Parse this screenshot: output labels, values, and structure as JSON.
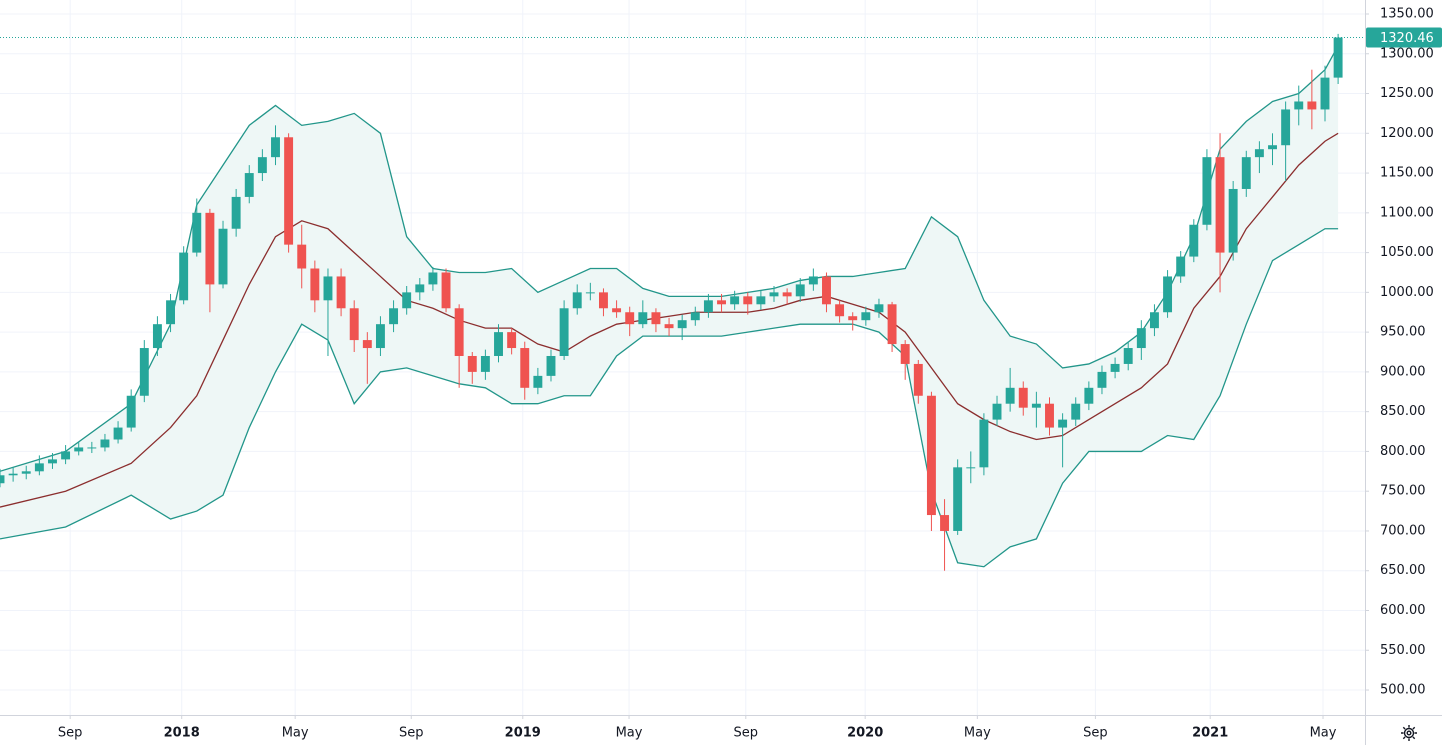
{
  "chart_data": {
    "type": "candlestick",
    "up_color": "#26a69a",
    "down_color": "#ef5350",
    "grid": true,
    "x": [
      0,
      2,
      4,
      6,
      8,
      10,
      12,
      14,
      16,
      18,
      20,
      22,
      24,
      26,
      28,
      30,
      32,
      34,
      36,
      38,
      40,
      42,
      44,
      46,
      48,
      50,
      52,
      54,
      56,
      58,
      60,
      62,
      64,
      66,
      68,
      70,
      72,
      74,
      76,
      78,
      80,
      82,
      84,
      86,
      88,
      90,
      92,
      94,
      96,
      98,
      100,
      102,
      104,
      106,
      108,
      110,
      112,
      114,
      116,
      118,
      120,
      122,
      124,
      126,
      128,
      130,
      132,
      134,
      136,
      138,
      140,
      142,
      144,
      146,
      148,
      150,
      152,
      154,
      156,
      158,
      160,
      162,
      164,
      166,
      168,
      170,
      172,
      174,
      176,
      178,
      180,
      182,
      184,
      186,
      188,
      190,
      192,
      194,
      196,
      198,
      200,
      202,
      204
    ],
    "ohlc": [
      [
        760,
        778,
        755,
        770
      ],
      [
        770,
        780,
        762,
        772
      ],
      [
        772,
        782,
        765,
        775
      ],
      [
        775,
        795,
        770,
        785
      ],
      [
        785,
        798,
        778,
        790
      ],
      [
        790,
        808,
        784,
        800
      ],
      [
        800,
        812,
        795,
        805
      ],
      [
        805,
        812,
        798,
        805
      ],
      [
        805,
        822,
        800,
        815
      ],
      [
        815,
        838,
        810,
        830
      ],
      [
        830,
        878,
        825,
        870
      ],
      [
        870,
        940,
        862,
        930
      ],
      [
        930,
        970,
        920,
        960
      ],
      [
        960,
        998,
        950,
        990
      ],
      [
        990,
        1058,
        985,
        1050
      ],
      [
        1050,
        1118,
        1045,
        1100
      ],
      [
        1100,
        1105,
        975,
        1010
      ],
      [
        1010,
        1090,
        1005,
        1080
      ],
      [
        1080,
        1130,
        1070,
        1120
      ],
      [
        1120,
        1160,
        1112,
        1150
      ],
      [
        1150,
        1180,
        1140,
        1170
      ],
      [
        1170,
        1210,
        1160,
        1195
      ],
      [
        1195,
        1200,
        1050,
        1060
      ],
      [
        1060,
        1085,
        1005,
        1030
      ],
      [
        1030,
        1040,
        975,
        990
      ],
      [
        990,
        1030,
        920,
        1020
      ],
      [
        1020,
        1030,
        970,
        980
      ],
      [
        980,
        990,
        925,
        940
      ],
      [
        940,
        950,
        885,
        930
      ],
      [
        930,
        970,
        920,
        960
      ],
      [
        960,
        990,
        950,
        980
      ],
      [
        980,
        1008,
        972,
        1000
      ],
      [
        1000,
        1018,
        990,
        1010
      ],
      [
        1010,
        1032,
        1002,
        1025
      ],
      [
        1025,
        1030,
        975,
        980
      ],
      [
        980,
        985,
        880,
        920
      ],
      [
        920,
        925,
        885,
        900
      ],
      [
        900,
        928,
        890,
        920
      ],
      [
        920,
        960,
        912,
        950
      ],
      [
        950,
        955,
        922,
        930
      ],
      [
        930,
        938,
        865,
        880
      ],
      [
        880,
        905,
        872,
        895
      ],
      [
        895,
        928,
        888,
        920
      ],
      [
        920,
        990,
        915,
        980
      ],
      [
        980,
        1010,
        972,
        1000
      ],
      [
        1000,
        1012,
        990,
        1000
      ],
      [
        1000,
        1005,
        970,
        980
      ],
      [
        980,
        990,
        968,
        975
      ],
      [
        975,
        982,
        945,
        960
      ],
      [
        960,
        990,
        955,
        975
      ],
      [
        975,
        980,
        950,
        960
      ],
      [
        960,
        968,
        945,
        955
      ],
      [
        955,
        972,
        940,
        965
      ],
      [
        965,
        982,
        958,
        975
      ],
      [
        975,
        998,
        968,
        990
      ],
      [
        990,
        998,
        975,
        985
      ],
      [
        985,
        1002,
        978,
        995
      ],
      [
        995,
        1000,
        972,
        985
      ],
      [
        985,
        1002,
        978,
        995
      ],
      [
        995,
        1008,
        988,
        1000
      ],
      [
        1000,
        1005,
        985,
        995
      ],
      [
        995,
        1018,
        988,
        1010
      ],
      [
        1010,
        1030,
        1002,
        1020
      ],
      [
        1020,
        1025,
        975,
        985
      ],
      [
        985,
        990,
        962,
        970
      ],
      [
        970,
        975,
        952,
        965
      ],
      [
        965,
        982,
        958,
        975
      ],
      [
        975,
        992,
        968,
        985
      ],
      [
        985,
        988,
        925,
        935
      ],
      [
        935,
        940,
        890,
        910
      ],
      [
        910,
        915,
        860,
        870
      ],
      [
        870,
        875,
        700,
        720
      ],
      [
        720,
        740,
        650,
        700
      ],
      [
        700,
        790,
        695,
        780
      ],
      [
        780,
        800,
        760,
        780
      ],
      [
        780,
        848,
        770,
        840
      ],
      [
        840,
        870,
        832,
        860
      ],
      [
        860,
        905,
        850,
        880
      ],
      [
        880,
        888,
        845,
        855
      ],
      [
        855,
        875,
        830,
        860
      ],
      [
        860,
        868,
        820,
        830
      ],
      [
        830,
        848,
        780,
        840
      ],
      [
        840,
        868,
        832,
        860
      ],
      [
        860,
        888,
        852,
        880
      ],
      [
        880,
        908,
        872,
        900
      ],
      [
        900,
        918,
        892,
        910
      ],
      [
        910,
        938,
        902,
        930
      ],
      [
        930,
        965,
        915,
        955
      ],
      [
        955,
        985,
        945,
        975
      ],
      [
        975,
        1028,
        968,
        1020
      ],
      [
        1020,
        1052,
        1012,
        1045
      ],
      [
        1045,
        1092,
        1038,
        1085
      ],
      [
        1085,
        1180,
        1078,
        1170
      ],
      [
        1170,
        1200,
        1000,
        1050
      ],
      [
        1050,
        1140,
        1040,
        1130
      ],
      [
        1130,
        1178,
        1120,
        1170
      ],
      [
        1170,
        1190,
        1150,
        1180
      ],
      [
        1180,
        1200,
        1160,
        1185
      ],
      [
        1185,
        1240,
        1140,
        1230
      ],
      [
        1230,
        1260,
        1210,
        1240
      ],
      [
        1240,
        1280,
        1205,
        1230
      ],
      [
        1230,
        1285,
        1215,
        1270
      ],
      [
        1270,
        1325,
        1262,
        1320.46
      ]
    ],
    "bands": {
      "x": [
        0,
        10,
        20,
        26,
        30,
        34,
        38,
        42,
        46,
        50,
        54,
        58,
        62,
        66,
        70,
        74,
        78,
        82,
        86,
        90,
        94,
        98,
        102,
        106,
        110,
        114,
        118,
        122,
        126,
        130,
        134,
        138,
        142,
        146,
        150,
        154,
        158,
        162,
        166,
        170,
        174,
        178,
        182,
        186,
        190,
        194,
        198,
        202,
        204
      ],
      "band_color": "#22968a",
      "fill_color": "#eef7f6",
      "middle_color": "#8b2e2e",
      "upper": [
        775,
        800,
        860,
        960,
        1110,
        1160,
        1210,
        1235,
        1210,
        1215,
        1225,
        1200,
        1070,
        1030,
        1025,
        1025,
        1030,
        1000,
        1015,
        1030,
        1030,
        1005,
        995,
        995,
        995,
        1000,
        1005,
        1015,
        1020,
        1020,
        1025,
        1030,
        1095,
        1070,
        990,
        945,
        935,
        905,
        910,
        925,
        950,
        1000,
        1070,
        1180,
        1215,
        1240,
        1250,
        1280,
        1310
      ],
      "middle": [
        730,
        750,
        785,
        830,
        870,
        940,
        1010,
        1070,
        1090,
        1080,
        1050,
        1020,
        990,
        980,
        965,
        955,
        955,
        935,
        925,
        945,
        960,
        965,
        970,
        975,
        975,
        975,
        980,
        990,
        995,
        985,
        975,
        950,
        905,
        860,
        840,
        825,
        815,
        820,
        840,
        860,
        880,
        910,
        980,
        1020,
        1080,
        1120,
        1160,
        1190,
        1200
      ],
      "lower": [
        690,
        705,
        745,
        715,
        725,
        745,
        830,
        900,
        960,
        940,
        860,
        900,
        905,
        895,
        885,
        880,
        860,
        860,
        870,
        870,
        920,
        945,
        945,
        945,
        945,
        950,
        955,
        960,
        960,
        960,
        950,
        920,
        750,
        660,
        655,
        680,
        690,
        760,
        800,
        800,
        800,
        820,
        815,
        870,
        960,
        1040,
        1060,
        1080,
        1080
      ]
    },
    "last_price": 1320.46,
    "xlim": [
      0,
      208.1
    ],
    "ylim": [
      468.6,
      1367.6
    ],
    "xticks": [
      {
        "value": 10.7,
        "label": "Sep"
      },
      {
        "value": 27.7,
        "label": "2018"
      },
      {
        "value": 45,
        "label": "May"
      },
      {
        "value": 62.7,
        "label": "Sep"
      },
      {
        "value": 79.7,
        "label": "2019"
      },
      {
        "value": 95.9,
        "label": "May"
      },
      {
        "value": 113.7,
        "label": "Sep"
      },
      {
        "value": 131.9,
        "label": "2020"
      },
      {
        "value": 149,
        "label": "May"
      },
      {
        "value": 167,
        "label": "Sep"
      },
      {
        "value": 184.5,
        "label": "2021"
      },
      {
        "value": 201.7,
        "label": "May"
      }
    ],
    "yticks": [
      {
        "value": 500,
        "label": "500.00"
      },
      {
        "value": 550,
        "label": "550.00"
      },
      {
        "value": 600,
        "label": "600.00"
      },
      {
        "value": 650,
        "label": "650.00"
      },
      {
        "value": 700,
        "label": "700.00"
      },
      {
        "value": 750,
        "label": "750.00"
      },
      {
        "value": 800,
        "label": "800.00"
      },
      {
        "value": 850,
        "label": "850.00"
      },
      {
        "value": 900,
        "label": "900.00"
      },
      {
        "value": 950,
        "label": "950.00"
      },
      {
        "value": 1000,
        "label": "1000.00"
      },
      {
        "value": 1050,
        "label": "1050.00"
      },
      {
        "value": 1100,
        "label": "1100.00"
      },
      {
        "value": 1150,
        "label": "1150.00"
      },
      {
        "value": 1200,
        "label": "1200.00"
      },
      {
        "value": 1250,
        "label": "1250.00"
      },
      {
        "value": 1300,
        "label": "1300.00"
      },
      {
        "value": 1350,
        "label": "1350.00"
      }
    ]
  }
}
